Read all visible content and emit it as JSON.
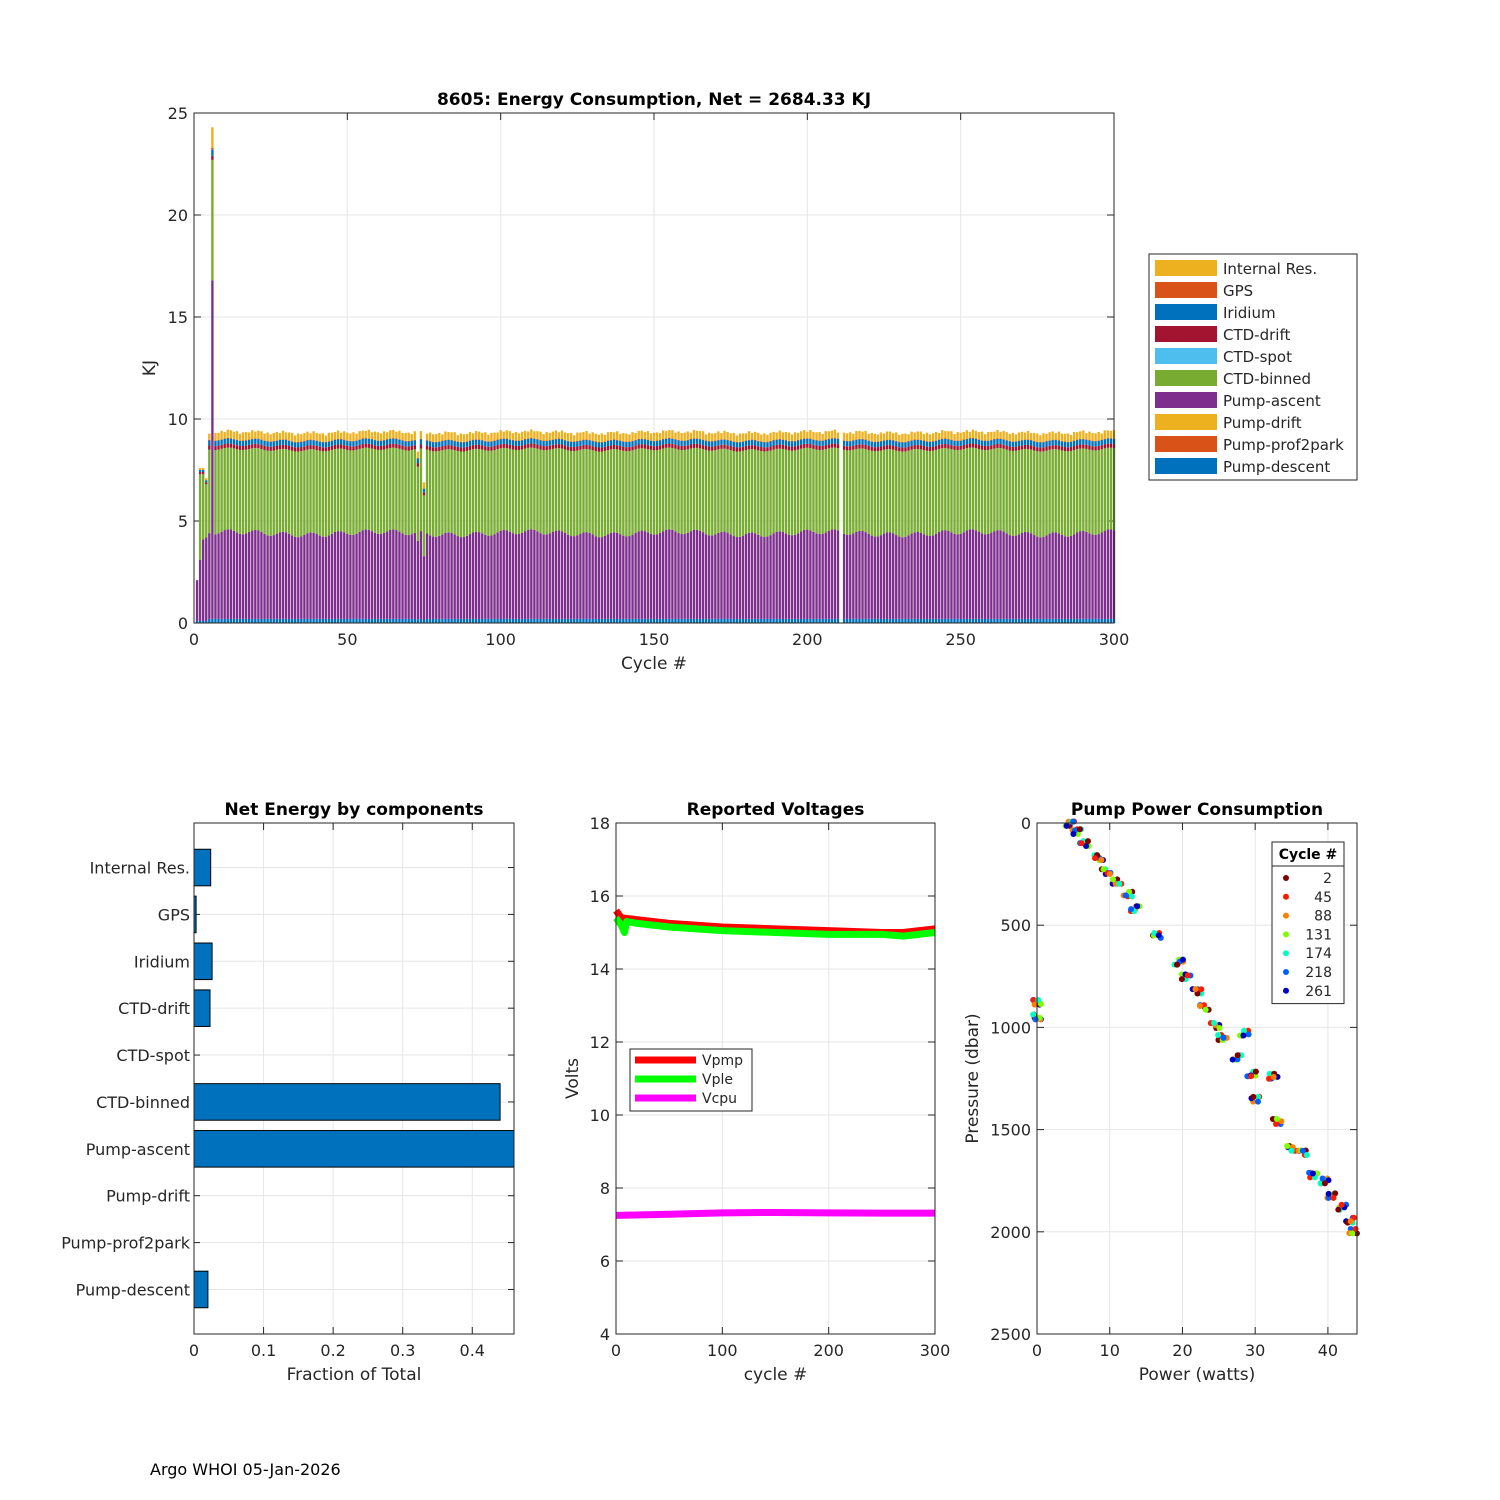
{
  "footer": "Argo WHOI 05-Jan-2026",
  "chart_data": [
    {
      "id": "energy",
      "type": "bar",
      "stacked": true,
      "title": "8605: Energy Consumption,  Net = 2684.33 KJ",
      "xlabel": "Cycle #",
      "ylabel": "KJ",
      "xlim": [
        0,
        300
      ],
      "ylim": [
        0,
        25
      ],
      "xticks": [
        0,
        50,
        100,
        150,
        200,
        250,
        300
      ],
      "yticks": [
        0,
        5,
        10,
        15,
        20,
        25
      ],
      "grid": true,
      "legend_position": "outside-right",
      "components": [
        "Internal Res.",
        "GPS",
        "Iridium",
        "CTD-drift",
        "CTD-spot",
        "CTD-binned",
        "Pump-ascent",
        "Pump-drift",
        "Pump-prof2park",
        "Pump-descent"
      ],
      "colors": {
        "Internal Res.": "#EDB120",
        "GPS": "#D95319",
        "Iridium": "#0072BD",
        "CTD-drift": "#A2142F",
        "CTD-spot": "#4DBEEE",
        "CTD-binned": "#77AC30",
        "Pump-ascent": "#7E2F8E",
        "Pump-drift": "#EDB120",
        "Pump-prof2park": "#D95319",
        "Pump-descent": "#0072BD"
      },
      "typical_cycle_kj": {
        "Pump-descent": 0.2,
        "Pump-prof2park": 0.0,
        "Pump-drift": 0.0,
        "Pump-ascent": 4.2,
        "CTD-binned": 4.1,
        "CTD-spot": 0.0,
        "CTD-drift": 0.2,
        "Iridium": 0.25,
        "GPS": 0.02,
        "Internal Res.": 0.3
      },
      "first_cycles": [
        {
          "cycle": 1,
          "Pump-descent": 0.1,
          "Pump-ascent": 2.0,
          "CTD-binned": 0.0,
          "CTD-drift": 0.0,
          "Iridium": 0.0,
          "GPS": 0.0,
          "Internal Res.": 0.0
        },
        {
          "cycle": 2,
          "Pump-descent": 0.1,
          "Pump-ascent": 3.0,
          "CTD-binned": 4.2,
          "CTD-drift": 0.1,
          "Iridium": 0.1,
          "GPS": 0.0,
          "Internal Res.": 0.1
        },
        {
          "cycle": 3,
          "Pump-descent": 0.1,
          "Pump-ascent": 4.0,
          "CTD-binned": 3.2,
          "CTD-drift": 0.1,
          "Iridium": 0.1,
          "GPS": 0.0,
          "Internal Res.": 0.1
        },
        {
          "cycle": 4,
          "Pump-descent": 0.1,
          "Pump-ascent": 4.1,
          "CTD-binned": 2.6,
          "CTD-drift": 0.1,
          "Iridium": 0.1,
          "GPS": 0.0,
          "Internal Res.": 0.1
        },
        {
          "cycle": 6,
          "Pump-descent": 0.2,
          "Pump-ascent": 16.6,
          "CTD-binned": 5.9,
          "CTD-drift": 0.2,
          "Iridium": 0.3,
          "GPS": 0.1,
          "Internal Res.": 1.0
        }
      ],
      "anomalies": [
        {
          "cycle": 73,
          "total": 8.4
        },
        {
          "cycle": 75,
          "total": 6.9
        }
      ],
      "missing_cycles": [
        211
      ],
      "cycles_range": [
        1,
        300
      ]
    },
    {
      "id": "components",
      "type": "bar",
      "orientation": "horizontal",
      "title": "Net Energy by components",
      "xlabel": "Fraction of Total",
      "ylabel": "",
      "xlim": [
        0,
        0.46
      ],
      "xticks": [
        0,
        0.1,
        0.2,
        0.3,
        0.4
      ],
      "grid": true,
      "color": "#0072BD",
      "categories": [
        "Internal Res.",
        "GPS",
        "Iridium",
        "CTD-drift",
        "CTD-spot",
        "CTD-binned",
        "Pump-ascent",
        "Pump-drift",
        "Pump-prof2park",
        "Pump-descent"
      ],
      "values": [
        0.024,
        0.003,
        0.026,
        0.023,
        0.0,
        0.44,
        0.47,
        0.0,
        0.0,
        0.02
      ]
    },
    {
      "id": "voltages",
      "type": "line",
      "title": "Reported Voltages",
      "xlabel": "cycle #",
      "ylabel": "Volts",
      "xlim": [
        0,
        300
      ],
      "ylim": [
        4,
        18
      ],
      "xticks": [
        0,
        100,
        200,
        300
      ],
      "yticks": [
        4,
        6,
        8,
        10,
        12,
        14,
        16,
        18
      ],
      "grid": true,
      "legend_position": "middle-left",
      "series": [
        {
          "name": "Vpmp",
          "color": "#FF0000",
          "x": [
            0,
            5,
            20,
            50,
            100,
            150,
            200,
            250,
            270,
            300
          ],
          "y": [
            15.6,
            15.4,
            15.35,
            15.25,
            15.15,
            15.1,
            15.05,
            15.0,
            15.0,
            15.1
          ]
        },
        {
          "name": "Vple",
          "color": "#00FF00",
          "x": [
            0,
            5,
            8,
            10,
            20,
            50,
            100,
            150,
            200,
            250,
            270,
            300
          ],
          "y": [
            15.4,
            15.2,
            15.0,
            15.3,
            15.25,
            15.15,
            15.05,
            15.0,
            14.95,
            14.95,
            14.9,
            15.0
          ]
        },
        {
          "name": "Vcpu",
          "color": "#FF00FF",
          "x": [
            0,
            50,
            100,
            150,
            200,
            250,
            300
          ],
          "y": [
            7.25,
            7.28,
            7.32,
            7.33,
            7.32,
            7.31,
            7.31
          ]
        }
      ]
    },
    {
      "id": "pump",
      "type": "scatter",
      "title": "Pump Power Consumption",
      "xlabel": "Power (watts)",
      "ylabel": "Pressure (dbar)",
      "xlim": [
        0,
        44
      ],
      "ylim": [
        0,
        2500
      ],
      "y_reversed": true,
      "xticks": [
        0,
        10,
        20,
        30,
        40
      ],
      "yticks": [
        0,
        500,
        1000,
        1500,
        2000,
        2500
      ],
      "grid": true,
      "legend_title": "Cycle #",
      "legend_position": "top-right",
      "legend": [
        {
          "label": "2",
          "color": "#800000"
        },
        {
          "label": "45",
          "color": "#FF1A00"
        },
        {
          "label": "88",
          "color": "#FF8000"
        },
        {
          "label": "131",
          "color": "#80FF00"
        },
        {
          "label": "174",
          "color": "#00FFC0"
        },
        {
          "label": "218",
          "color": "#0060FF"
        },
        {
          "label": "261",
          "color": "#0000C0"
        }
      ],
      "clusters": [
        {
          "x": 4.5,
          "y": 0
        },
        {
          "x": 5.5,
          "y": 40
        },
        {
          "x": 6.5,
          "y": 100
        },
        {
          "x": 8.5,
          "y": 170
        },
        {
          "x": 9.5,
          "y": 240
        },
        {
          "x": 11,
          "y": 290
        },
        {
          "x": 12.5,
          "y": 350
        },
        {
          "x": 13.5,
          "y": 420
        },
        {
          "x": 19.5,
          "y": 680
        },
        {
          "x": 20.5,
          "y": 750
        },
        {
          "x": 22,
          "y": 820
        },
        {
          "x": 23,
          "y": 900
        },
        {
          "x": 24.5,
          "y": 990
        },
        {
          "x": 25.5,
          "y": 1050
        },
        {
          "x": 28.5,
          "y": 1030
        },
        {
          "x": 27.5,
          "y": 1150
        },
        {
          "x": 29.5,
          "y": 1230
        },
        {
          "x": 32.5,
          "y": 1240
        },
        {
          "x": 33,
          "y": 1460
        },
        {
          "x": 35,
          "y": 1590
        },
        {
          "x": 36.5,
          "y": 1610
        },
        {
          "x": 38,
          "y": 1720
        },
        {
          "x": 39.5,
          "y": 1750
        },
        {
          "x": 42,
          "y": 1880
        },
        {
          "x": 43,
          "y": 1945
        },
        {
          "x": 43.5,
          "y": 2000
        },
        {
          "x": 0,
          "y": 880
        },
        {
          "x": 0,
          "y": 950
        },
        {
          "x": 16.5,
          "y": 550
        },
        {
          "x": 30,
          "y": 1350
        },
        {
          "x": 40.5,
          "y": 1820
        }
      ]
    }
  ]
}
